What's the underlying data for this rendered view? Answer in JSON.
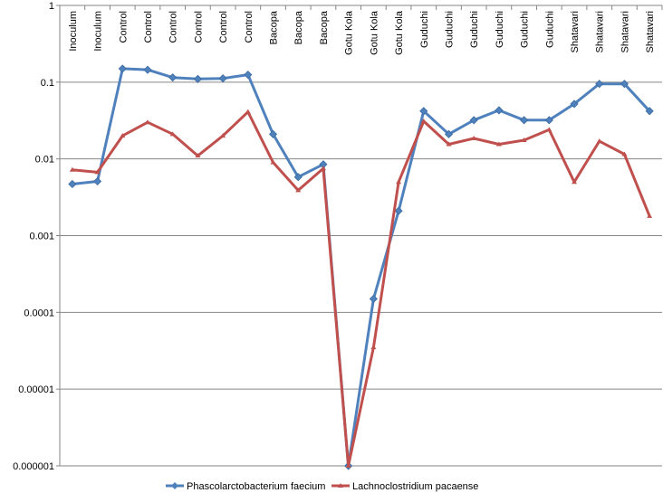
{
  "chart_data": {
    "type": "line",
    "title": "",
    "xlabel": "",
    "ylabel": "",
    "y_scale": "log",
    "ylim": [
      1e-06,
      1
    ],
    "y_ticks": [
      1,
      0.1,
      0.01,
      0.001,
      0.0001,
      1e-05,
      1e-06
    ],
    "y_tick_labels": [
      "1",
      "0.1",
      "0.01",
      "0.001",
      "0.0001",
      "0.00001",
      "0.000001"
    ],
    "grid": "horizontal",
    "legend_position": "bottom",
    "categories": [
      "Inoculum",
      "Inoculum",
      "Control",
      "Control",
      "Control",
      "Control",
      "Control",
      "Control",
      "Bacopa",
      "Bacopa",
      "Bacopa",
      "Gotu Kola",
      "Gotu Kola",
      "Gotu Kola",
      "Guduchi",
      "Guduchi",
      "Guduchi",
      "Guduchi",
      "Guduchi",
      "Guduchi",
      "Shatavari",
      "Shatavari",
      "Shatavari",
      "Shatavari"
    ],
    "series": [
      {
        "name": "Phascolarctobacterium faecium",
        "color": "#4F81BD",
        "marker": "diamond",
        "values": [
          0.0047,
          0.0051,
          0.15,
          0.145,
          0.115,
          0.11,
          0.112,
          0.125,
          0.021,
          0.0058,
          0.0085,
          1e-06,
          0.00015,
          0.0021,
          0.042,
          0.021,
          0.032,
          0.043,
          0.032,
          0.032,
          0.052,
          0.095,
          0.095,
          0.042
        ]
      },
      {
        "name": "Lachnoclostridium pacaense",
        "color": "#C0504D",
        "marker": "triangle",
        "values": [
          0.0072,
          0.0067,
          0.02,
          0.03,
          0.021,
          0.011,
          0.02,
          0.041,
          0.009,
          0.0039,
          0.0075,
          1e-06,
          3.5e-05,
          0.005,
          0.031,
          0.0155,
          0.0185,
          0.0155,
          0.0175,
          0.024,
          0.005,
          0.017,
          0.0115,
          0.0018
        ]
      }
    ]
  }
}
